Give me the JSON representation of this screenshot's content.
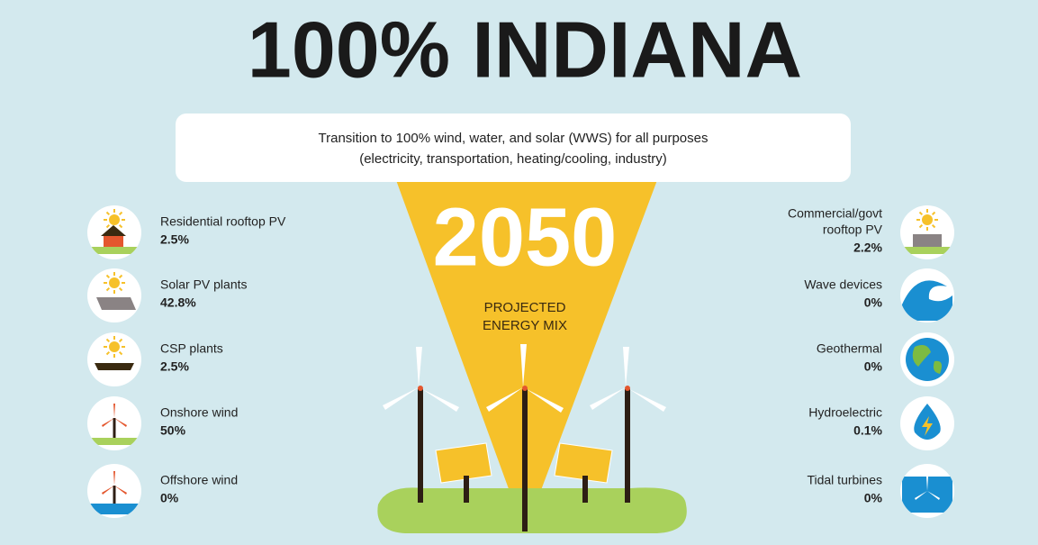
{
  "title": "100% INDIANA",
  "subtitle": {
    "lines": [
      "Transition to 100% wind, water, and solar (WWS) for all purposes",
      "(electricity, transportation, heating/cooling, industry)"
    ]
  },
  "year": "2050",
  "caption": {
    "lines": [
      "PROJECTED",
      "ENERGY MIX"
    ]
  },
  "left": [
    {
      "label": "Residential rooftop PV",
      "value": "2.5%"
    },
    {
      "label": "Solar PV plants",
      "value": "42.8%"
    },
    {
      "label": "CSP plants",
      "value": "2.5%"
    },
    {
      "label": "Onshore wind",
      "value": "50%"
    },
    {
      "label": "Offshore wind",
      "value": "0%"
    }
  ],
  "right": [
    {
      "lines": [
        "Commercial/govt",
        "rooftop PV"
      ],
      "value": "2.2%"
    },
    {
      "lines": [
        "Wave devices"
      ],
      "value": "0%"
    },
    {
      "lines": [
        "Geothermal"
      ],
      "value": "0%"
    },
    {
      "lines": [
        "Hydroelectric"
      ],
      "value": "0.1%"
    },
    {
      "lines": [
        "Tidal turbines"
      ],
      "value": "0%"
    }
  ]
}
